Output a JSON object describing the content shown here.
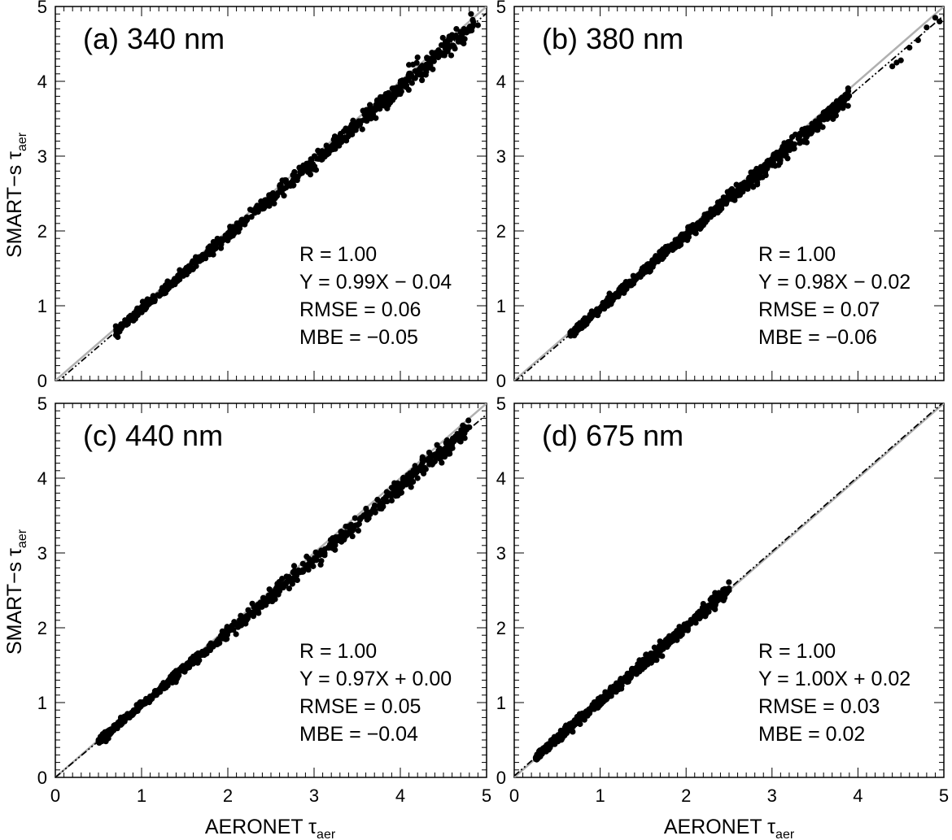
{
  "chart_data": [
    {
      "type": "scatter",
      "panel_label": "(a) 340 nm",
      "xlim": [
        0,
        5
      ],
      "ylim": [
        0,
        5
      ],
      "x_ticks": [
        "0",
        "1",
        "2",
        "3",
        "4",
        "5"
      ],
      "y_ticks": [
        "0",
        "1",
        "2",
        "3",
        "4",
        "5"
      ],
      "stats": [
        "R = 1.00",
        "Y = 0.99X − 0.04",
        "RMSE =  0.06",
        "MBE =  −0.05"
      ],
      "fit": {
        "slope": 0.99,
        "intercept": -0.04
      },
      "series": [
        {
          "x_range": [
            0.7,
            4.85
          ],
          "slope": 0.99,
          "intercept": -0.04,
          "outliers": [
            [
              4.2,
              4.32
            ],
            [
              4.1,
              4.22
            ],
            [
              4.6,
              4.62
            ],
            [
              4.65,
              4.7
            ],
            [
              4.82,
              4.9
            ],
            [
              4.9,
              4.75
            ],
            [
              4.3,
              4.2
            ],
            [
              4.25,
              4.1
            ]
          ]
        }
      ]
    },
    {
      "type": "scatter",
      "panel_label": "(b) 380 nm",
      "xlim": [
        0,
        5
      ],
      "ylim": [
        0,
        5
      ],
      "x_ticks": [
        "0",
        "1",
        "2",
        "3",
        "4",
        "5"
      ],
      "y_ticks": [
        "0",
        "1",
        "2",
        "3",
        "4",
        "5"
      ],
      "stats": [
        "R = 1.00",
        "Y = 0.98X − 0.02",
        "RMSE =  0.07",
        "MBE =  −0.06"
      ],
      "fit": {
        "slope": 0.98,
        "intercept": -0.02
      },
      "series": [
        {
          "x_range": [
            0.65,
            3.9
          ],
          "slope": 0.98,
          "intercept": -0.02,
          "outliers": [
            [
              4.4,
              4.2
            ],
            [
              4.45,
              4.25
            ],
            [
              4.5,
              4.28
            ],
            [
              4.6,
              4.45
            ],
            [
              4.7,
              4.55
            ],
            [
              4.8,
              4.72
            ],
            [
              4.9,
              4.85
            ],
            [
              4.95,
              4.8
            ]
          ]
        }
      ]
    },
    {
      "type": "scatter",
      "panel_label": "(c) 440 nm",
      "xlim": [
        0,
        5
      ],
      "ylim": [
        0,
        5
      ],
      "x_ticks": [
        "0",
        "1",
        "2",
        "3",
        "4",
        "5"
      ],
      "y_ticks": [
        "0",
        "1",
        "2",
        "3",
        "4",
        "5"
      ],
      "stats": [
        "R = 1.00",
        "Y = 0.97X + 0.00",
        "RMSE =  0.05",
        "MBE =  −0.04"
      ],
      "fit": {
        "slope": 0.97,
        "intercept": 0.0
      },
      "series": [
        {
          "x_range": [
            0.5,
            4.8
          ],
          "slope": 0.97,
          "intercept": 0.0,
          "outliers": [
            [
              3.7,
              3.55
            ],
            [
              3.8,
              3.62
            ],
            [
              3.9,
              3.7
            ],
            [
              4.0,
              3.8
            ],
            [
              4.2,
              4.0
            ],
            [
              4.6,
              4.5
            ],
            [
              4.7,
              4.6
            ],
            [
              4.8,
              4.68
            ]
          ]
        }
      ]
    },
    {
      "type": "scatter",
      "panel_label": "(d) 675 nm",
      "xlim": [
        0,
        5
      ],
      "ylim": [
        0,
        5
      ],
      "x_ticks": [
        "0",
        "1",
        "2",
        "3",
        "4",
        "5"
      ],
      "y_ticks": [
        "0",
        "1",
        "2",
        "3",
        "4",
        "5"
      ],
      "stats": [
        "R = 1.00",
        "Y = 1.00X + 0.02",
        "RMSE =  0.03",
        "MBE =   0.02"
      ],
      "fit": {
        "slope": 1.0,
        "intercept": 0.02
      },
      "series": [
        {
          "x_range": [
            0.25,
            2.5
          ],
          "slope": 1.0,
          "intercept": 0.02,
          "outliers": [
            [
              2.3,
              2.4
            ],
            [
              2.4,
              2.45
            ],
            [
              2.5,
              2.5
            ],
            [
              2.2,
              2.32
            ]
          ]
        }
      ]
    }
  ],
  "axis_titles": {
    "y_main": "SMART−s τ",
    "y_sub": "aer",
    "x_main": "AERONET τ",
    "x_sub": "aer"
  },
  "colors": {
    "points": "#000000",
    "one_to_one_line": "#b0b0b0",
    "fit_line": "#000000",
    "axes": "#000000"
  }
}
